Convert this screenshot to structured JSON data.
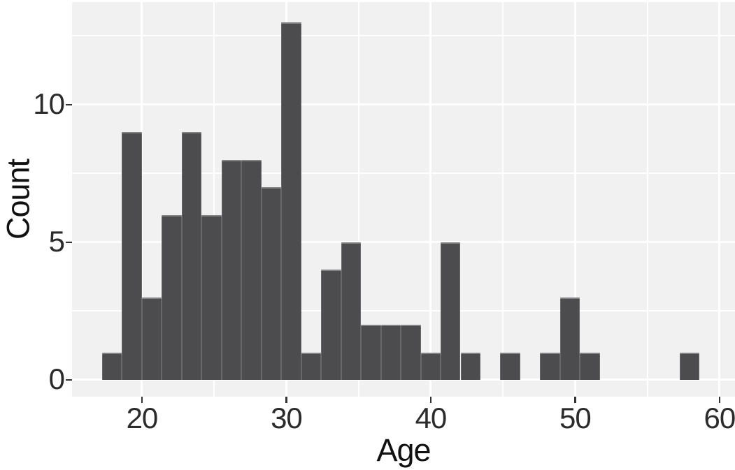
{
  "chart_data": {
    "type": "bar",
    "subtype": "histogram",
    "title": "",
    "xlabel": "Age",
    "ylabel": "Count",
    "bins": {
      "start": 17.24,
      "width": 1.379,
      "counts": [
        1,
        9,
        3,
        6,
        9,
        6,
        8,
        8,
        7,
        13,
        1,
        4,
        5,
        2,
        2,
        2,
        1,
        5,
        1,
        0,
        1,
        0,
        1,
        3,
        1,
        0,
        0,
        0,
        0,
        1
      ]
    },
    "total_observations": 100,
    "x_ticks": [
      20,
      30,
      40,
      50,
      60
    ],
    "x_tick_labels": [
      "20",
      "30",
      "40",
      "50",
      "60"
    ],
    "x_minor_ticks": [
      25,
      35,
      45,
      55
    ],
    "y_ticks": [
      0,
      5,
      10
    ],
    "y_tick_labels": [
      "0",
      "5",
      "10"
    ],
    "y_minor_ticks": [
      2.5,
      7.5,
      12.5
    ],
    "xlim": [
      15.16,
      61.07
    ],
    "ylim": [
      -0.61,
      13.73
    ],
    "grid": true,
    "legend": "none",
    "colors": {
      "bar_fill": "#4c4c4e",
      "bar_edge_light": "rgba(255,255,255,0.30)",
      "bar_divider": "rgba(255,255,255,0.16)",
      "panel_background": "#f1f1f2",
      "outer_background": "#ffffff",
      "grid_major": "#ffffff",
      "grid_minor": "#ffffff",
      "tick_mark": "#333333",
      "tick_label_text": "#2b2b2b",
      "axis_title_text": "#111111"
    }
  }
}
